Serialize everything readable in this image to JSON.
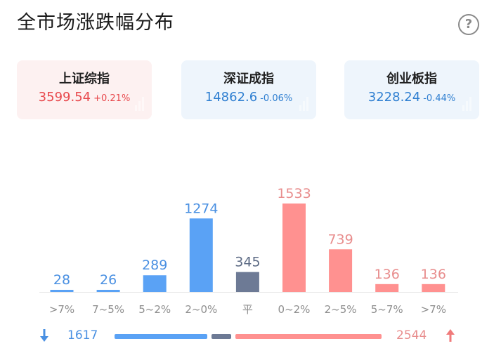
{
  "title": "全市场涨跌幅分布",
  "help_icon": "?",
  "indices": [
    {
      "name": "上证综指",
      "value": "3599.54",
      "change": "+0.21%",
      "trend": "up"
    },
    {
      "name": "深证成指",
      "value": "14862.6",
      "change": "-0.06%",
      "trend": "down"
    },
    {
      "name": "创业板指",
      "value": "3228.24",
      "change": "-0.44%",
      "trend": "down"
    }
  ],
  "colors": {
    "up": "#ff9190",
    "down": "#5aa2f5",
    "flat": "#6d7a95",
    "up_text": "#e88d8d",
    "down_text": "#4a90e2",
    "flat_text": "#5d6b85"
  },
  "chart_data": {
    "type": "bar",
    "categories": [
      ">7%",
      "7~5%",
      "5~2%",
      "2~0%",
      "平",
      "0~2%",
      "2~5%",
      "5~7%",
      ">7%"
    ],
    "values": [
      28,
      26,
      289,
      1274,
      345,
      1533,
      739,
      136,
      136
    ],
    "kinds": [
      "down",
      "down",
      "down",
      "down",
      "flat",
      "up",
      "up",
      "up",
      "up"
    ],
    "ylim": [
      0,
      1533
    ]
  },
  "summary": {
    "down_count": "1617",
    "up_count": "2544",
    "down_icon": "arrow-down-icon",
    "up_icon": "arrow-up-icon"
  }
}
